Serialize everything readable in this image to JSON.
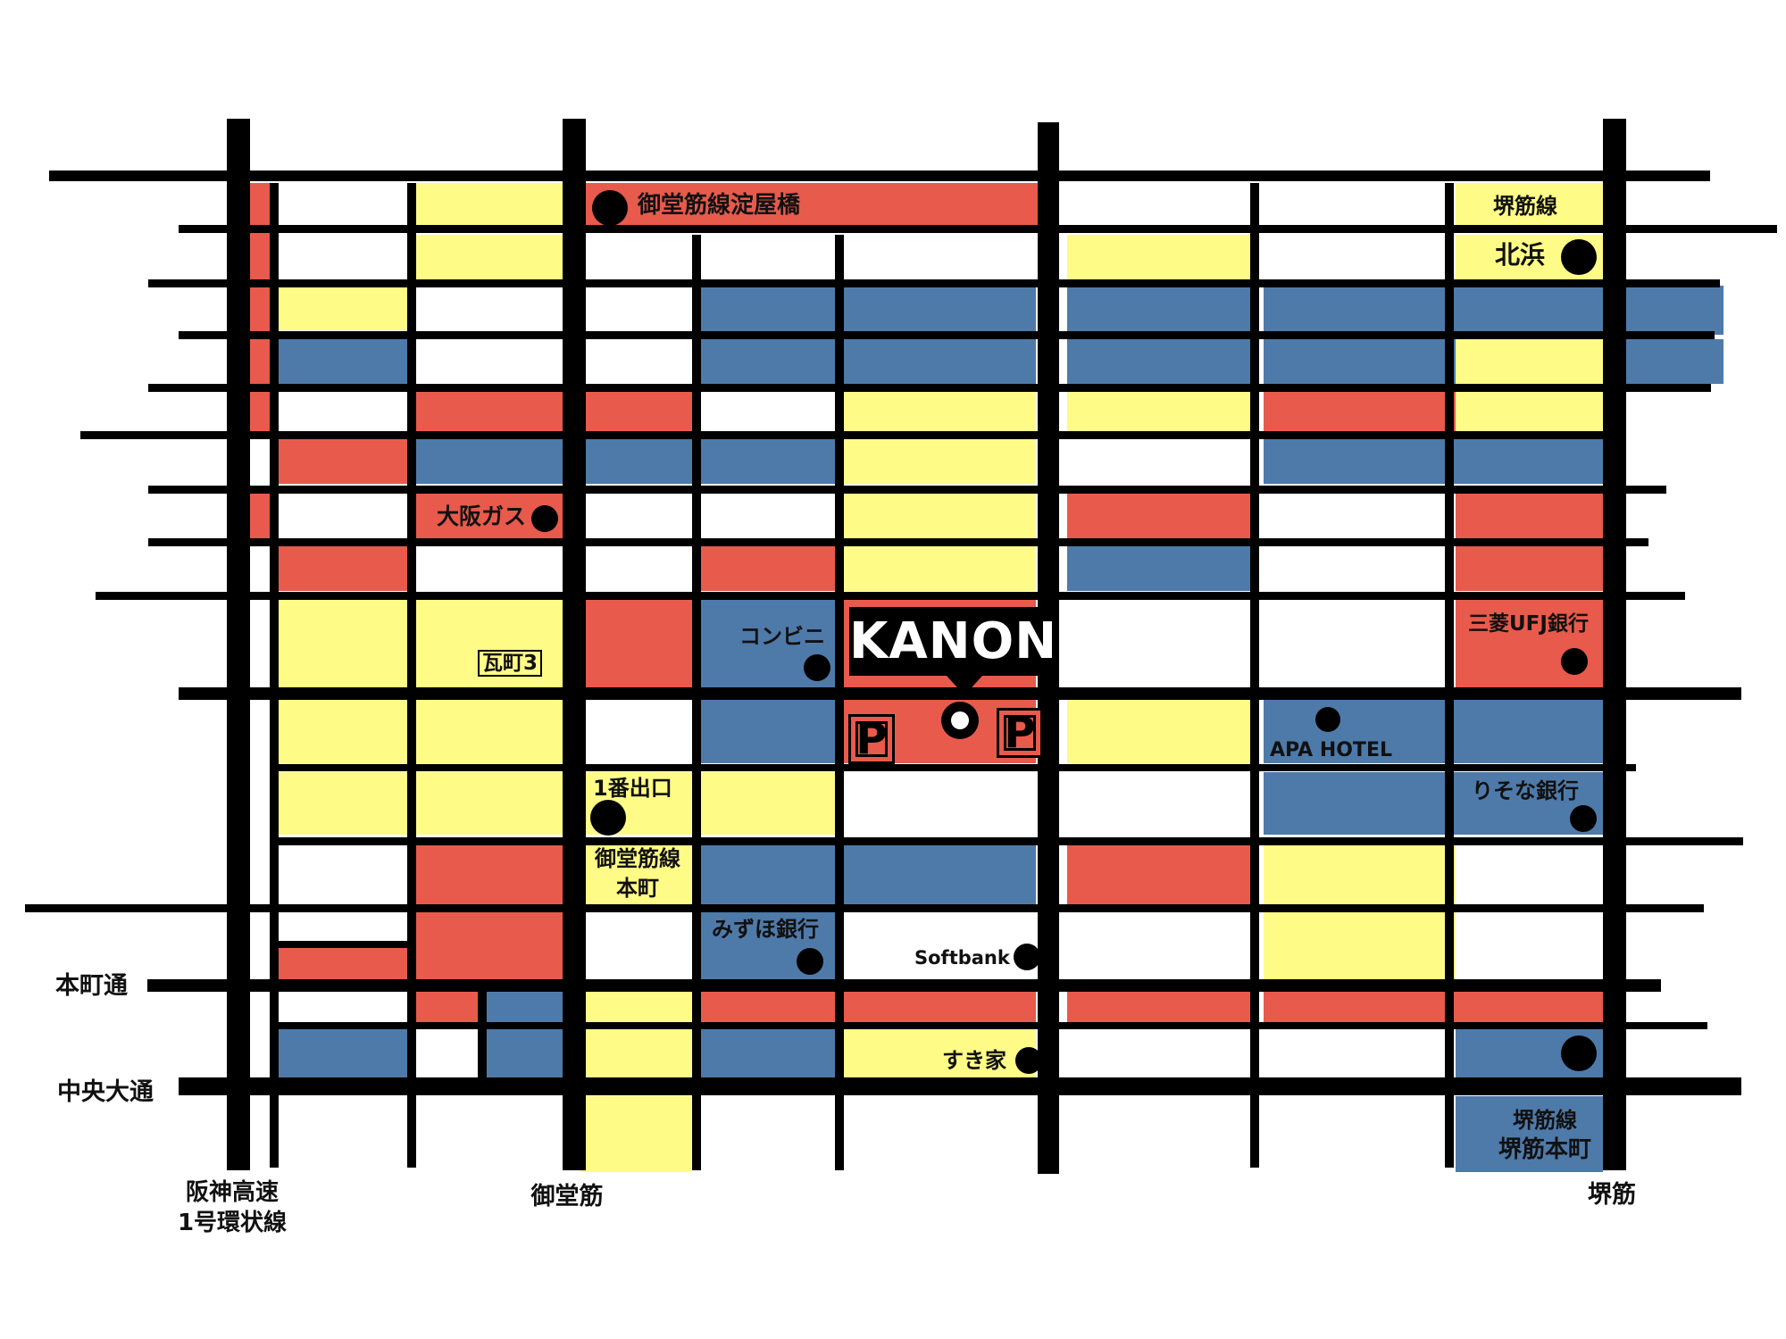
{
  "colors": {
    "red": "#e85a4b",
    "blue": "#4e7aa9",
    "yellow": "#fefb86",
    "white": "#ffffff",
    "line": "#000000"
  },
  "destination": {
    "name": "KANON"
  },
  "parking_symbol": "P",
  "stations": {
    "yodoyabashi": "御堂筋線淀屋橋",
    "sakaisuji_line": "堺筋線",
    "kitahama": "北浜",
    "exit1": "1番出口",
    "midosuji_hommachi": [
      "御堂筋線",
      "本町"
    ],
    "sakaisuji_hommachi": [
      "堺筋線",
      "堺筋本町"
    ]
  },
  "landmarks": {
    "osaka_gas": "大阪ガス",
    "kawaramachi3": "瓦町3",
    "konbini": "コンビニ",
    "mufg": "三菱UFJ銀行",
    "apa_hotel": "APA HOTEL",
    "resona": "りそな銀行",
    "mizuho": "みずほ銀行",
    "softbank": "Softbank",
    "sukiya": "すき家"
  },
  "roads": {
    "hommachi_dori": "本町通",
    "chuo_odori": "中央大通",
    "hanshin_expressway": [
      "阪神高速",
      "1号環状線"
    ],
    "midosuji": "御堂筋",
    "sakaisuji": "堺筋"
  }
}
